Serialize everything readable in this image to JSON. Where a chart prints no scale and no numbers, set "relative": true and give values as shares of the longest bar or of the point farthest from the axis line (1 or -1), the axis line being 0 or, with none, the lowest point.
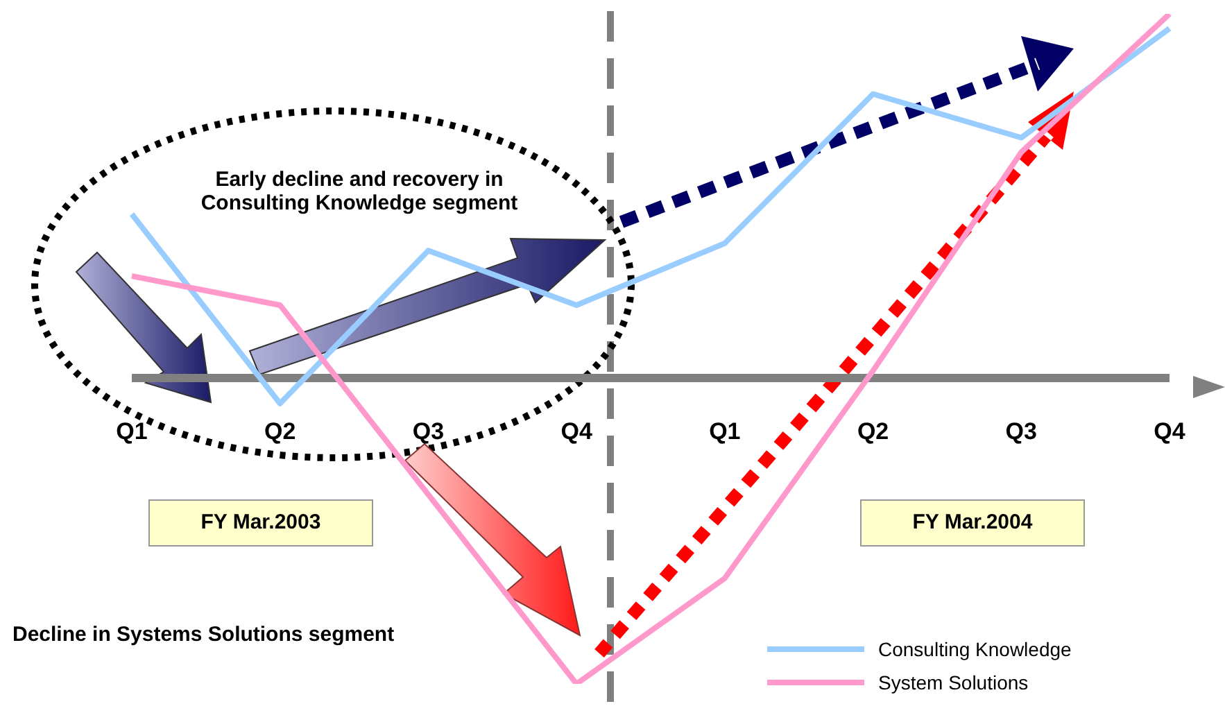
{
  "chart_data": {
    "type": "line",
    "relative": true,
    "categories": [
      "Q1",
      "Q2",
      "Q3",
      "Q4",
      "Q1",
      "Q2",
      "Q3",
      "Q4"
    ],
    "series": [
      {
        "name": "Consulting Knowledge",
        "color": "#99ccff",
        "values": [
          0.45,
          -0.07,
          0.35,
          0.2,
          0.37,
          0.78,
          0.66,
          0.96
        ]
      },
      {
        "name": "System Solutions",
        "color": "#ff99cc",
        "values": [
          0.28,
          0.2,
          -0.32,
          -0.84,
          -0.55,
          0.02,
          0.62,
          1
        ]
      }
    ],
    "annotations": [
      "Early decline and recovery in Consulting Knowledge segment",
      "Decline in Systems Solutions segment",
      "FY Mar.2003",
      "FY Mar.2004"
    ],
    "legend": "bottom right",
    "marker": "none",
    "line_style": "solid"
  }
}
